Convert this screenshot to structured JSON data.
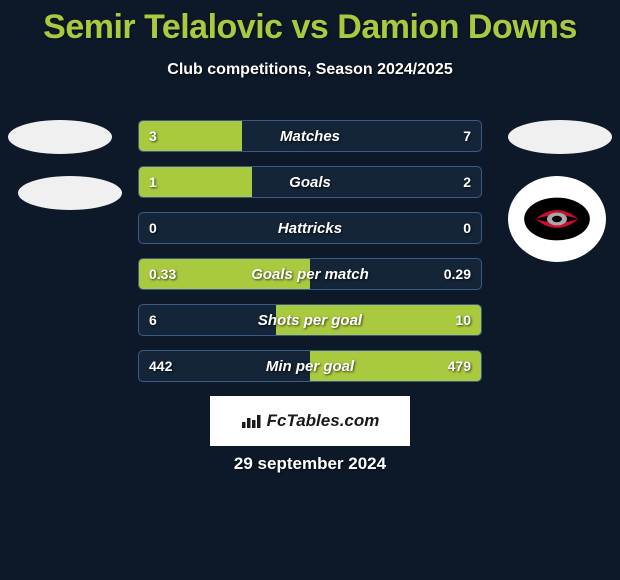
{
  "title": "Semir Telalovic vs Damion Downs",
  "subtitle": "Club competitions, Season 2024/2025",
  "footer_brand": "FcTables.com",
  "footer_date": "29 september 2024",
  "colors": {
    "background": "#0d1928",
    "accent": "#a9c93f",
    "bar_border": "#3a5a8a",
    "bar_bg": "#142538",
    "text": "#ffffff"
  },
  "typography": {
    "title_fontsize": 34,
    "subtitle_fontsize": 16,
    "bar_label_fontsize": 15,
    "bar_value_fontsize": 14
  },
  "bars": [
    {
      "label": "Matches",
      "left_val": "3",
      "right_val": "7",
      "left_pct": 30,
      "right_pct": 0
    },
    {
      "label": "Goals",
      "left_val": "1",
      "right_val": "2",
      "left_pct": 33,
      "right_pct": 0
    },
    {
      "label": "Hattricks",
      "left_val": "0",
      "right_val": "0",
      "left_pct": 0,
      "right_pct": 0
    },
    {
      "label": "Goals per match",
      "left_val": "0.33",
      "right_val": "0.29",
      "left_pct": 50,
      "right_pct": 0
    },
    {
      "label": "Shots per goal",
      "left_val": "6",
      "right_val": "10",
      "left_pct": 0,
      "right_pct": 60
    },
    {
      "label": "Min per goal",
      "left_val": "442",
      "right_val": "479",
      "left_pct": 0,
      "right_pct": 50
    }
  ],
  "logo_colors": {
    "outer": "#000000",
    "swirl_red": "#c8102e",
    "swirl_grey": "#a8a9ad"
  }
}
